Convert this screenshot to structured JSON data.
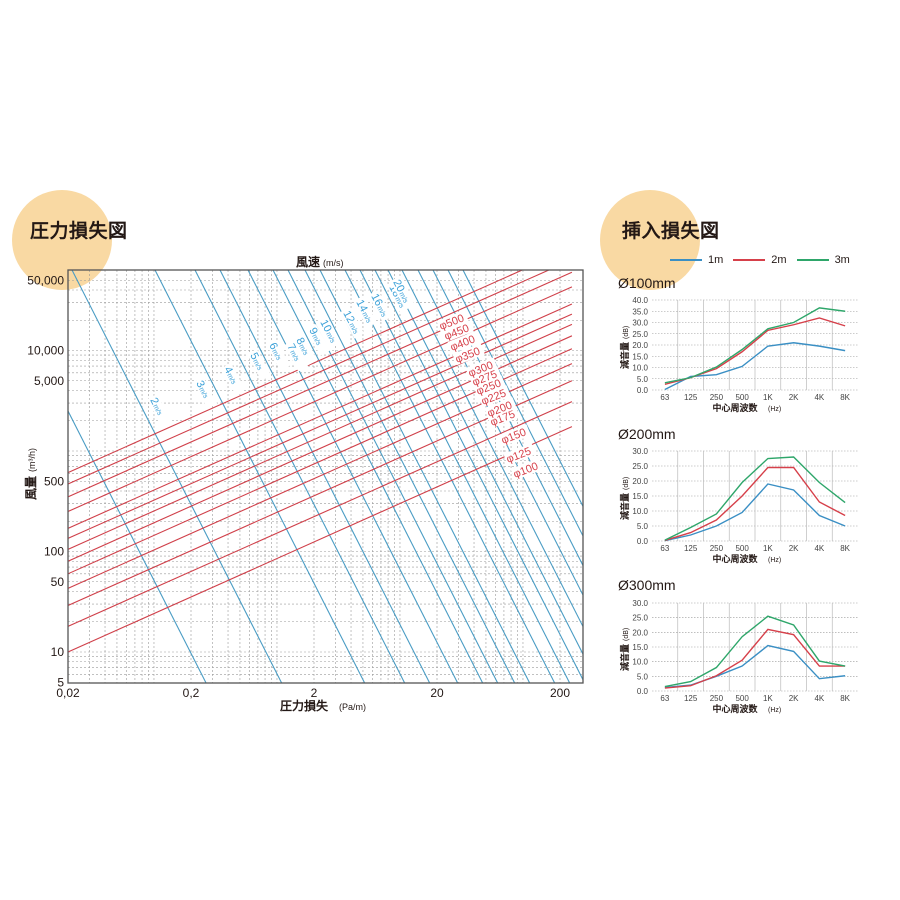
{
  "left_section": {
    "title": "圧力損失図",
    "top_axis_label": "風速",
    "top_axis_unit": "(m/s)",
    "y_axis_label": "風量",
    "y_axis_unit": "(m³/h)",
    "x_axis_label": "圧力損失",
    "x_axis_unit": "(Pa/m)"
  },
  "right_section": {
    "title": "挿入損失図",
    "legend": [
      {
        "label": "1m",
        "color": "#3a8fc4"
      },
      {
        "label": "2m",
        "color": "#d6404a"
      },
      {
        "label": "3m",
        "color": "#2ea66a"
      }
    ],
    "charts": [
      {
        "title": "Ø100mm"
      },
      {
        "title": "Ø200mm"
      },
      {
        "title": "Ø300mm"
      }
    ],
    "y_label": "減音量",
    "y_unit": "(dB)",
    "x_label": "中心周波数",
    "x_unit": "(Hz)"
  },
  "colors": {
    "velocity_line": "#4a9cc4",
    "velocity_label": "#3aa0d8",
    "diameter_line": "#d0404a",
    "diameter_label": "#d6404a",
    "grid": "#9a9a9a",
    "frame": "#555555",
    "blob": "#f9d9a3"
  },
  "chart_data": [
    {
      "type": "line",
      "title": "圧力損失図",
      "xlabel": "圧力損失 (Pa/m)",
      "ylabel": "風量 (m³/h)",
      "top_label": "風速 (m/s)",
      "x_scale": "log",
      "y_scale": "log",
      "xlim": [
        0.02,
        250
      ],
      "ylim": [
        5,
        50000
      ],
      "x_ticks": [
        "0.02",
        "0.2",
        "2",
        "20",
        "200"
      ],
      "y_ticks": [
        "5",
        "10",
        "50",
        "100",
        "500",
        "5,000",
        "10,000",
        "50,000"
      ],
      "grid": true,
      "velocity_lines": [
        "2m/s",
        "3m/s",
        "4m/s",
        "5m/s",
        "6m/s",
        "7m/s",
        "8m/s",
        "9m/s",
        "10m/s",
        "12m/s",
        "14m/s",
        "16m/s",
        "18m/s",
        "20m/s"
      ],
      "diameter_lines": [
        "φ100",
        "φ125",
        "φ150",
        "φ175",
        "φ200",
        "φ225",
        "φ250",
        "φ275",
        "φ300",
        "φ350",
        "φ400",
        "φ450",
        "φ500"
      ],
      "series": [
        {
          "name": "φ100",
          "x": [
            0.02,
            250
          ],
          "y": [
            10,
            1750
          ]
        },
        {
          "name": "φ125",
          "x": [
            0.02,
            250
          ],
          "y": [
            18,
            3100
          ]
        },
        {
          "name": "φ150",
          "x": [
            0.02,
            250
          ],
          "y": [
            29,
            5000
          ]
        },
        {
          "name": "φ175",
          "x": [
            0.02,
            250
          ],
          "y": [
            43,
            7400
          ]
        },
        {
          "name": "φ200",
          "x": [
            0.02,
            250
          ],
          "y": [
            60,
            10400
          ]
        },
        {
          "name": "φ225",
          "x": [
            0.02,
            250
          ],
          "y": [
            80,
            14000
          ]
        },
        {
          "name": "φ250",
          "x": [
            0.02,
            250
          ],
          "y": [
            105,
            18200
          ]
        },
        {
          "name": "φ275",
          "x": [
            0.02,
            250
          ],
          "y": [
            135,
            23000
          ]
        },
        {
          "name": "φ300",
          "x": [
            0.02,
            250
          ],
          "y": [
            170,
            29000
          ]
        },
        {
          "name": "φ350",
          "x": [
            0.02,
            250
          ],
          "y": [
            250,
            43000
          ]
        },
        {
          "name": "φ400",
          "x": [
            0.02,
            250
          ],
          "y": [
            350,
            60000
          ]
        },
        {
          "name": "φ450",
          "x": [
            0.02,
            250
          ],
          "y": [
            470,
            80000
          ]
        },
        {
          "name": "φ500",
          "x": [
            0.02,
            250
          ],
          "y": [
            610,
            105000
          ]
        }
      ]
    },
    {
      "type": "line",
      "title": "Ø100mm",
      "xlabel": "中心周波数 (Hz)",
      "ylabel": "減音量 (dB)",
      "categories": [
        "63",
        "125",
        "250",
        "500",
        "1K",
        "2K",
        "4K",
        "8K"
      ],
      "ylim": [
        0,
        40
      ],
      "y_ticks": [
        "0.0",
        "5.0",
        "10.0",
        "15.0",
        "20.0",
        "25.0",
        "30.0",
        "35.0",
        "40.0"
      ],
      "grid": true,
      "series": [
        {
          "name": "1m",
          "values": [
            0.2,
            6.0,
            6.8,
            10.5,
            19.5,
            21.0,
            19.5,
            17.5
          ]
        },
        {
          "name": "2m",
          "values": [
            2.5,
            5.5,
            9.5,
            17.0,
            26.5,
            29.0,
            32.0,
            28.5
          ]
        },
        {
          "name": "3m",
          "values": [
            3.2,
            5.5,
            10.2,
            18.0,
            27.2,
            30.0,
            36.5,
            35.0
          ]
        }
      ]
    },
    {
      "type": "line",
      "title": "Ø200mm",
      "xlabel": "中心周波数 (Hz)",
      "ylabel": "減音量 (dB)",
      "categories": [
        "63",
        "125",
        "250",
        "500",
        "1K",
        "2K",
        "4K",
        "8K"
      ],
      "ylim": [
        0,
        30
      ],
      "y_ticks": [
        "0.0",
        "5.0",
        "10.0",
        "15.0",
        "20.0",
        "25.0",
        "30.0"
      ],
      "grid": true,
      "series": [
        {
          "name": "1m",
          "values": [
            0.1,
            2.0,
            5.0,
            9.5,
            19.0,
            17.0,
            8.5,
            5.0
          ]
        },
        {
          "name": "2m",
          "values": [
            0.2,
            2.8,
            7.0,
            15.0,
            24.5,
            24.5,
            13.0,
            8.5
          ]
        },
        {
          "name": "3m",
          "values": [
            0.3,
            4.5,
            9.0,
            19.5,
            27.5,
            28.0,
            19.5,
            12.8
          ]
        }
      ]
    },
    {
      "type": "line",
      "title": "Ø300mm",
      "xlabel": "中心周波数 (Hz)",
      "ylabel": "減音量 (dB)",
      "categories": [
        "63",
        "125",
        "250",
        "500",
        "1K",
        "2K",
        "4K",
        "8K"
      ],
      "ylim": [
        0,
        30
      ],
      "y_ticks": [
        "0.0",
        "5.0",
        "10.0",
        "15.0",
        "20.0",
        "25.0",
        "30.0"
      ],
      "grid": true,
      "series": [
        {
          "name": "1m",
          "values": [
            1.2,
            2.0,
            5.0,
            8.5,
            15.5,
            13.5,
            4.2,
            5.2
          ]
        },
        {
          "name": "2m",
          "values": [
            1.0,
            1.8,
            5.2,
            10.5,
            21.0,
            19.2,
            8.5,
            8.5
          ]
        },
        {
          "name": "3m",
          "values": [
            1.5,
            3.2,
            8.0,
            18.5,
            25.5,
            22.5,
            10.2,
            8.5
          ]
        }
      ]
    }
  ]
}
